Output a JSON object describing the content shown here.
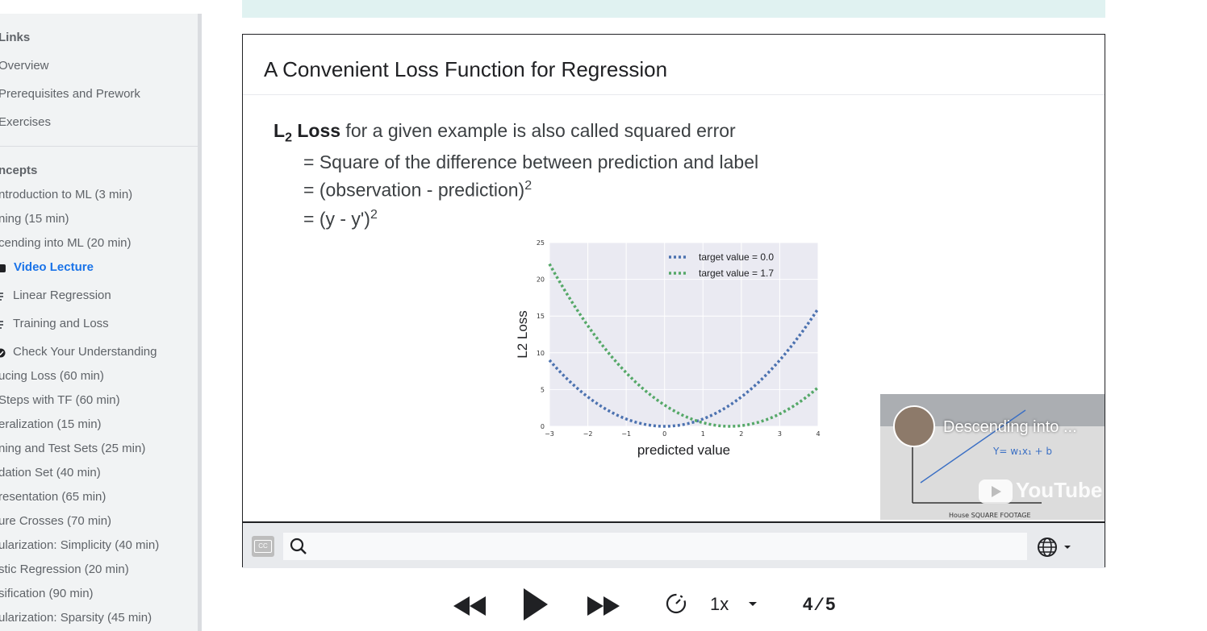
{
  "sidebar": {
    "links_heading": "Links",
    "links": [
      "Overview",
      "Prerequisites and Prework",
      "Exercises"
    ],
    "concepts_heading": "ncepts",
    "concepts": [
      "ntroduction to ML (3 min)",
      "ning (15 min)",
      "cending into ML (20 min)"
    ],
    "active_item": "Video Lecture",
    "subitems": [
      "Linear Regression",
      "Training and Loss",
      "Check Your Understanding"
    ],
    "more_concepts": [
      "ucing Loss (60 min)",
      " Steps with TF (60 min)",
      "eralization (15 min)",
      "ning and Test Sets (25 min)",
      "dation Set (40 min)",
      "resentation (65 min)",
      "ure Crosses (70 min)",
      "ularization: Simplicity (40 min)",
      "stic Regression (20 min)",
      "sification (90 min)",
      "ularization: Sparsity (45 min)"
    ]
  },
  "slide": {
    "title": "A Convenient Loss Function for Regression",
    "l2_main": "L",
    "l2_sub": "2",
    "l2_bold": " Loss",
    "l2_rest": " for a given example is also called squared error",
    "line2": "= Square of the difference between prediction and label",
    "line3": "= (observation - prediction)",
    "line3_sup": "2",
    "line4": "= (y - y')",
    "line4_sup": "2"
  },
  "chart_data": {
    "type": "line",
    "xlabel": "predicted value",
    "ylabel": "L2 Loss",
    "xlim": [
      -3,
      4
    ],
    "ylim": [
      0,
      25
    ],
    "x_ticks": [
      "−3",
      "−2",
      "−1",
      "0",
      "1",
      "2",
      "3",
      "4"
    ],
    "y_ticks": [
      "0",
      "5",
      "10",
      "15",
      "20",
      "25"
    ],
    "series": [
      {
        "name": "target value = 0.0",
        "color": "#4c72b0",
        "target": 0.0,
        "x": [
          -3,
          -2,
          -1,
          0,
          1,
          2,
          3,
          4
        ],
        "values": [
          9,
          4,
          1,
          0,
          1,
          4,
          9,
          16
        ]
      },
      {
        "name": "target value = 1.7",
        "color": "#55a868",
        "target": 1.7,
        "x": [
          -3,
          -2,
          -1,
          0,
          1,
          2,
          3,
          4
        ],
        "values": [
          22.09,
          13.69,
          7.29,
          2.89,
          0.49,
          0.09,
          1.69,
          5.29
        ]
      }
    ],
    "legend": "top-right",
    "grid": true
  },
  "video": {
    "title": "Descending into ...",
    "platform": "YouTube"
  },
  "controls": {
    "cc_label": "CC",
    "search_placeholder": "",
    "speed": "1x",
    "page": "4 ⁄ 5"
  }
}
